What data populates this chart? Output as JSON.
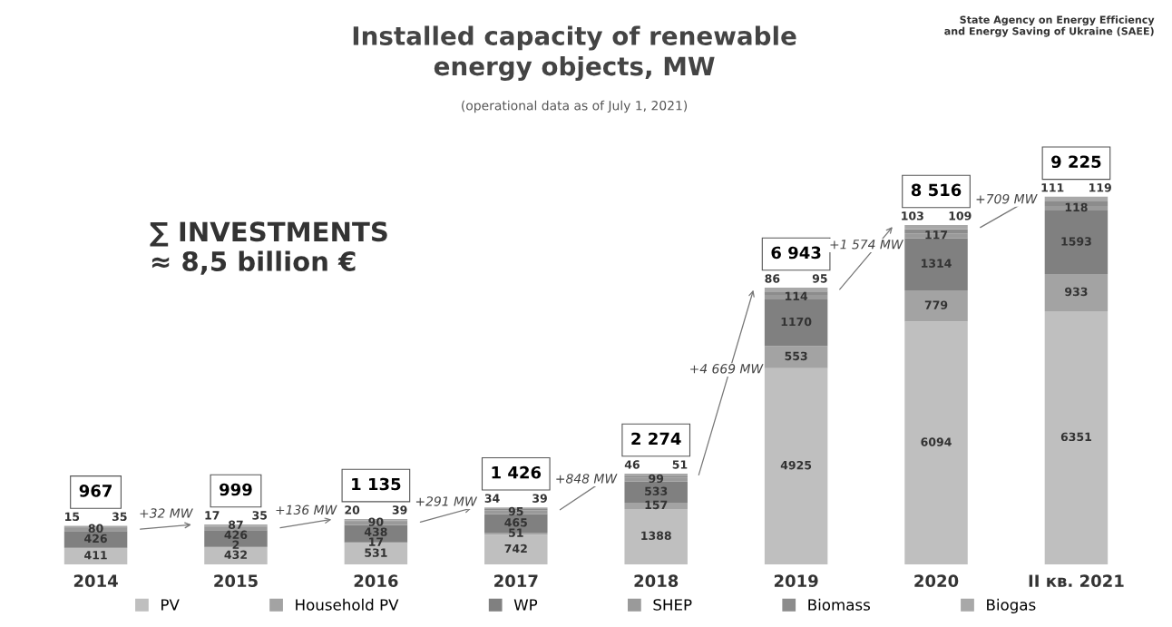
{
  "chart_data": {
    "type": "bar",
    "stacked": true,
    "title": "Installed capacity of renewable\nenergy objects, MW",
    "subtitle": "(operational data as of July 1, 2021)",
    "categories": [
      "2014",
      "2015",
      "2016",
      "2017",
      "2018",
      "2019",
      "2020",
      "II кв. 2021"
    ],
    "series": [
      {
        "name": "PV",
        "color": "#bfbfbf",
        "values": [
          411,
          432,
          531,
          742,
          1388,
          4925,
          6094,
          6351
        ]
      },
      {
        "name": "Household PV",
        "color": "#a3a3a3",
        "values": [
          null,
          2,
          17,
          51,
          157,
          553,
          779,
          933
        ]
      },
      {
        "name": "WP",
        "color": "#808080",
        "values": [
          426,
          426,
          438,
          465,
          533,
          1170,
          1314,
          1593
        ]
      },
      {
        "name": "SHEP",
        "color": "#9a9a9a",
        "values": [
          80,
          87,
          90,
          95,
          99,
          114,
          117,
          118
        ]
      },
      {
        "name": "Biomass",
        "color": "#8c8c8c",
        "values": [
          15,
          17,
          20,
          34,
          46,
          86,
          103,
          111
        ]
      },
      {
        "name": "Biogas",
        "color": "#a8a8a8",
        "values": [
          35,
          35,
          39,
          39,
          51,
          95,
          109,
          119
        ]
      }
    ],
    "data_labels": true,
    "totals": [
      "967",
      "999",
      "1 135",
      "1 426",
      "2 274",
      "6 943",
      "8 516",
      "9 225"
    ],
    "annotations": [
      "∑ INVESTMENTS\n≈ 8,5 billion €",
      "+32 MW",
      "+136 MW",
      "+291 MW",
      "+848 MW",
      "+4 669 MW",
      "+1 574 MW",
      "+709 MW",
      "State Agency on Energy Efficiency\nand Energy Saving of Ukraine (SAEE)"
    ],
    "tick_labels": "x",
    "grid": false,
    "legend": "bottom"
  }
}
